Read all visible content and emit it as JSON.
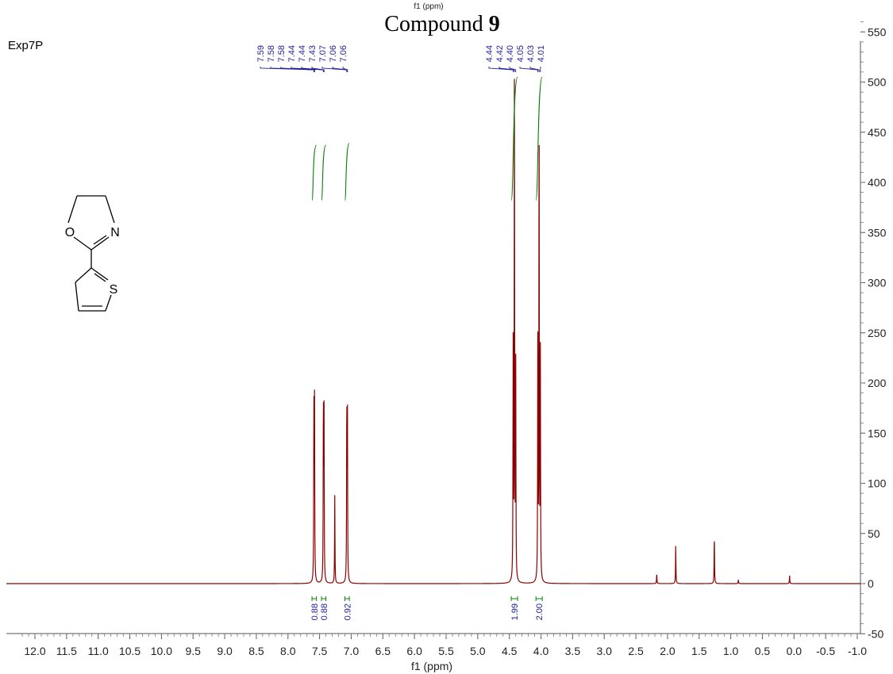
{
  "header": {
    "top_axis_label": "f1 (ppm)",
    "title_prefix": "Compound ",
    "title_number": "9"
  },
  "experiment_label": "Exp7P",
  "molecule": {
    "atoms": [
      {
        "name": "oxygen-atom",
        "symbol": "O"
      },
      {
        "name": "nitrogen-atom",
        "symbol": "N"
      },
      {
        "name": "sulfur-atom",
        "symbol": "S"
      }
    ]
  },
  "colors": {
    "spectrum": "#8b0000",
    "integral": "#0a7f0a",
    "peak_label": "#1f1f9a"
  },
  "chart_data": {
    "type": "line",
    "xlabel": "f1 (ppm)",
    "ylabel": "",
    "x_reversed": true,
    "xlim": [
      12.3,
      -1.3
    ],
    "ylim": [
      -50,
      570
    ],
    "x_ticks": [
      "12.0",
      "11.5",
      "11.0",
      "10.5",
      "10.0",
      "9.5",
      "9.0",
      "8.5",
      "8.0",
      "7.5",
      "7.0",
      "6.5",
      "6.0",
      "5.5",
      "5.0",
      "4.5",
      "4.0",
      "3.5",
      "3.0",
      "2.5",
      "2.0",
      "1.5",
      "1.0",
      "0.5",
      "0.0",
      "-0.5",
      "-1.0"
    ],
    "y_ticks": [
      "550",
      "500",
      "450",
      "400",
      "350",
      "300",
      "250",
      "200",
      "150",
      "100",
      "50",
      "0",
      "-50"
    ],
    "peaks": [
      {
        "ppm": 7.59,
        "height": 172
      },
      {
        "ppm": 7.58,
        "height": 175
      },
      {
        "ppm": 7.44,
        "height": 178
      },
      {
        "ppm": 7.43,
        "height": 172
      },
      {
        "ppm": 7.26,
        "height": 88
      },
      {
        "ppm": 7.07,
        "height": 178
      },
      {
        "ppm": 7.06,
        "height": 172
      },
      {
        "ppm": 4.44,
        "height": 235
      },
      {
        "ppm": 4.42,
        "height": 518
      },
      {
        "ppm": 4.4,
        "height": 235
      },
      {
        "ppm": 4.05,
        "height": 245
      },
      {
        "ppm": 4.03,
        "height": 480
      },
      {
        "ppm": 4.01,
        "height": 225
      },
      {
        "ppm": 2.17,
        "height": 10
      },
      {
        "ppm": 1.87,
        "height": 38
      },
      {
        "ppm": 1.26,
        "height": 48
      },
      {
        "ppm": 0.88,
        "height": 4
      },
      {
        "ppm": 0.07,
        "height": 8
      }
    ],
    "peak_labels": {
      "group1": [
        "7.59",
        "7.58",
        "7.58",
        "7.44",
        "7.44",
        "7.43",
        "7.07",
        "7.06",
        "7.06"
      ],
      "group2": [
        "4.44",
        "4.42",
        "4.40",
        "4.05",
        "4.03",
        "4.01"
      ]
    },
    "integrals": [
      {
        "from": 7.62,
        "to": 7.55,
        "value": "0.88",
        "y_start": 382,
        "y_end": 437
      },
      {
        "from": 7.47,
        "to": 7.4,
        "value": "0.88",
        "y_start": 382,
        "y_end": 437
      },
      {
        "from": 7.1,
        "to": 7.03,
        "value": "0.92",
        "y_start": 382,
        "y_end": 439
      },
      {
        "from": 4.47,
        "to": 4.37,
        "value": "1.99",
        "y_start": 382,
        "y_end": 505
      },
      {
        "from": 4.08,
        "to": 3.98,
        "value": "2.00",
        "y_start": 382,
        "y_end": 505
      }
    ]
  }
}
